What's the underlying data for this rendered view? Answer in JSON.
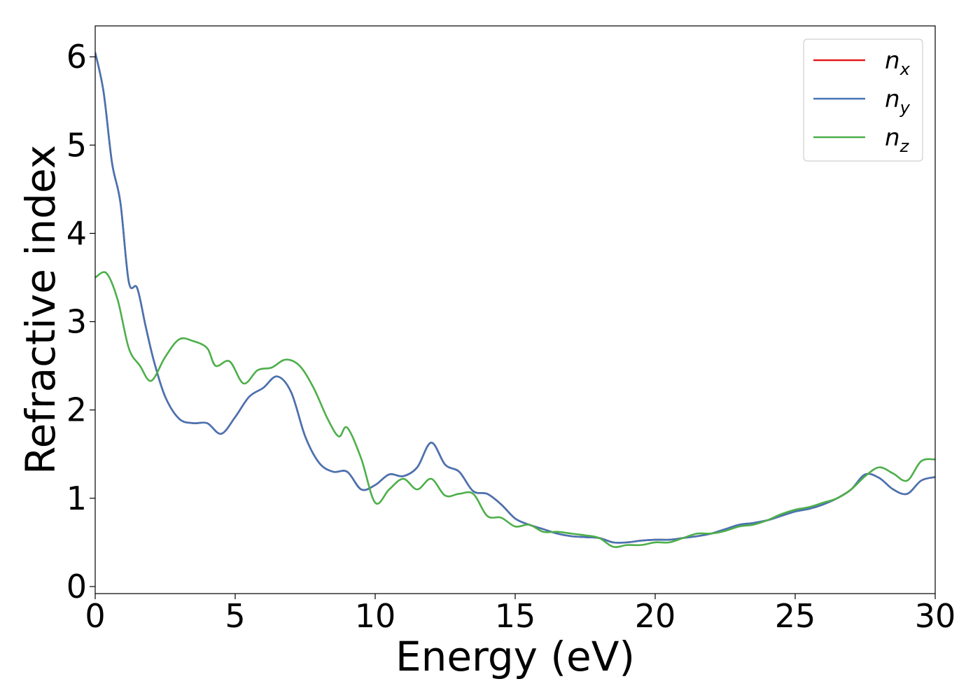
{
  "chart_data": {
    "type": "line",
    "xlabel": "Energy (eV)",
    "ylabel": "Refractive index",
    "xlim": [
      0,
      30
    ],
    "ylim": [
      -0.08,
      6.35
    ],
    "xticks": [
      0,
      5,
      10,
      15,
      20,
      25,
      30
    ],
    "yticks": [
      0,
      1,
      2,
      3,
      4,
      5,
      6
    ],
    "grid": false,
    "legend_position": "top-right",
    "series": [
      {
        "name": "n",
        "subscript": "x",
        "color": "#e41a1c",
        "x": [
          0,
          0.3,
          0.6,
          0.9,
          1.2,
          1.5,
          1.8,
          2.1,
          2.5,
          3.0,
          3.5,
          4.0,
          4.5,
          5.0,
          5.5,
          6.0,
          6.5,
          7.0,
          7.5,
          8.0,
          8.5,
          9.0,
          9.5,
          10.0,
          10.5,
          11.0,
          11.5,
          12.0,
          12.5,
          13.0,
          13.5,
          14.0,
          14.5,
          15.0,
          15.5,
          16.0,
          16.5,
          17.0,
          17.5,
          18.0,
          18.5,
          19.0,
          19.5,
          20.0,
          20.5,
          21.0,
          21.5,
          22.0,
          22.5,
          23.0,
          23.5,
          24.0,
          24.5,
          25.0,
          25.5,
          26.0,
          26.5,
          27.0,
          27.5,
          28.0,
          28.5,
          29.0,
          29.5,
          30.0
        ],
        "y": [
          6.05,
          5.6,
          4.8,
          4.35,
          3.45,
          3.38,
          2.95,
          2.55,
          2.15,
          1.9,
          1.85,
          1.85,
          1.73,
          1.92,
          2.15,
          2.25,
          2.38,
          2.2,
          1.7,
          1.4,
          1.3,
          1.3,
          1.1,
          1.15,
          1.27,
          1.25,
          1.35,
          1.63,
          1.38,
          1.3,
          1.08,
          1.05,
          0.93,
          0.77,
          0.7,
          0.65,
          0.6,
          0.57,
          0.56,
          0.55,
          0.5,
          0.5,
          0.52,
          0.53,
          0.53,
          0.55,
          0.57,
          0.6,
          0.65,
          0.7,
          0.72,
          0.75,
          0.8,
          0.85,
          0.88,
          0.93,
          1.0,
          1.1,
          1.27,
          1.23,
          1.1,
          1.05,
          1.2,
          1.24
        ]
      },
      {
        "name": "n",
        "subscript": "y",
        "color": "#4575b4",
        "x": [
          0,
          0.3,
          0.6,
          0.9,
          1.2,
          1.5,
          1.8,
          2.1,
          2.5,
          3.0,
          3.5,
          4.0,
          4.5,
          5.0,
          5.5,
          6.0,
          6.5,
          7.0,
          7.5,
          8.0,
          8.5,
          9.0,
          9.5,
          10.0,
          10.5,
          11.0,
          11.5,
          12.0,
          12.5,
          13.0,
          13.5,
          14.0,
          14.5,
          15.0,
          15.5,
          16.0,
          16.5,
          17.0,
          17.5,
          18.0,
          18.5,
          19.0,
          19.5,
          20.0,
          20.5,
          21.0,
          21.5,
          22.0,
          22.5,
          23.0,
          23.5,
          24.0,
          24.5,
          25.0,
          25.5,
          26.0,
          26.5,
          27.0,
          27.5,
          28.0,
          28.5,
          29.0,
          29.5,
          30.0
        ],
        "y": [
          6.05,
          5.6,
          4.8,
          4.35,
          3.45,
          3.38,
          2.95,
          2.55,
          2.15,
          1.9,
          1.85,
          1.85,
          1.73,
          1.92,
          2.15,
          2.25,
          2.38,
          2.2,
          1.7,
          1.4,
          1.3,
          1.3,
          1.1,
          1.15,
          1.27,
          1.25,
          1.35,
          1.63,
          1.38,
          1.3,
          1.08,
          1.05,
          0.93,
          0.77,
          0.7,
          0.65,
          0.6,
          0.57,
          0.56,
          0.55,
          0.5,
          0.5,
          0.52,
          0.53,
          0.53,
          0.55,
          0.57,
          0.6,
          0.65,
          0.7,
          0.72,
          0.75,
          0.8,
          0.85,
          0.88,
          0.93,
          1.0,
          1.1,
          1.27,
          1.23,
          1.1,
          1.05,
          1.2,
          1.24
        ]
      },
      {
        "name": "n",
        "subscript": "z",
        "color": "#4daf4a",
        "x": [
          0,
          0.4,
          0.8,
          1.2,
          1.6,
          2.0,
          2.5,
          3.0,
          3.5,
          4.0,
          4.3,
          4.8,
          5.3,
          5.8,
          6.3,
          6.8,
          7.3,
          7.8,
          8.3,
          8.7,
          9.0,
          9.5,
          10.0,
          10.5,
          11.0,
          11.5,
          12.0,
          12.5,
          13.0,
          13.5,
          14.0,
          14.5,
          15.0,
          15.5,
          16.0,
          16.5,
          17.0,
          17.5,
          18.0,
          18.5,
          19.0,
          19.5,
          20.0,
          20.5,
          21.0,
          21.5,
          22.0,
          22.5,
          23.0,
          23.5,
          24.0,
          24.5,
          25.0,
          25.5,
          26.0,
          26.5,
          27.0,
          27.5,
          28.0,
          28.5,
          29.0,
          29.5,
          30.0
        ],
        "y": [
          3.5,
          3.55,
          3.25,
          2.7,
          2.5,
          2.33,
          2.6,
          2.8,
          2.78,
          2.7,
          2.5,
          2.55,
          2.3,
          2.45,
          2.48,
          2.57,
          2.5,
          2.25,
          1.9,
          1.7,
          1.8,
          1.45,
          0.95,
          1.1,
          1.22,
          1.1,
          1.22,
          1.03,
          1.05,
          1.05,
          0.8,
          0.78,
          0.68,
          0.7,
          0.62,
          0.62,
          0.6,
          0.58,
          0.55,
          0.45,
          0.47,
          0.47,
          0.5,
          0.5,
          0.55,
          0.6,
          0.6,
          0.63,
          0.68,
          0.7,
          0.75,
          0.82,
          0.87,
          0.9,
          0.95,
          1.0,
          1.1,
          1.25,
          1.35,
          1.28,
          1.2,
          1.42,
          1.44
        ]
      }
    ]
  }
}
